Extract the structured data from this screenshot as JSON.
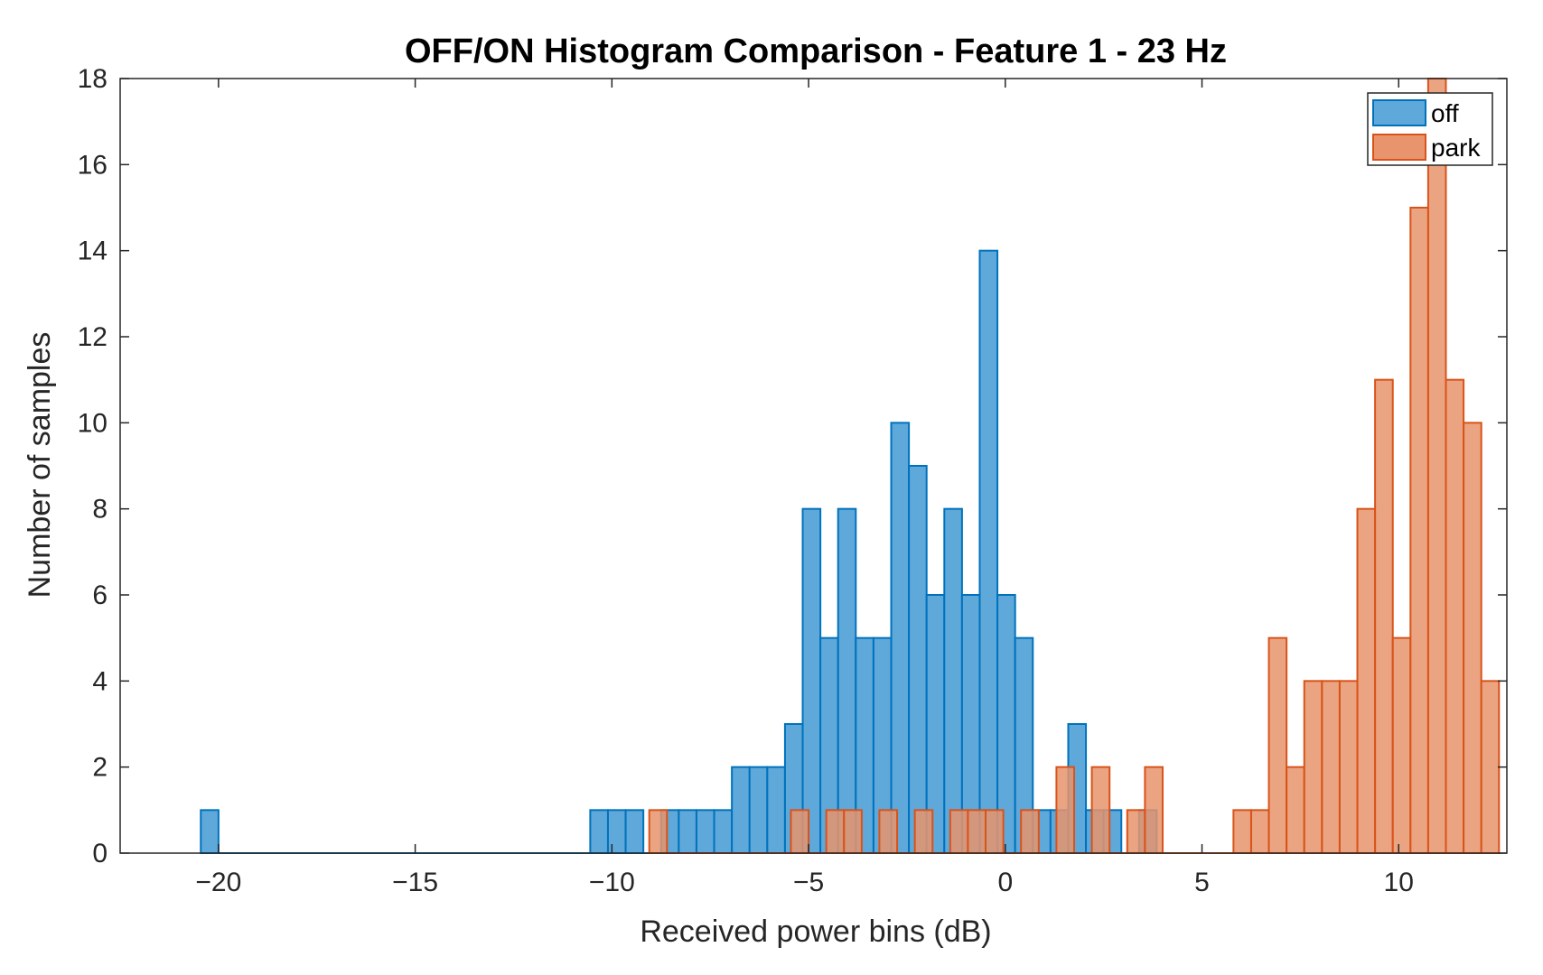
{
  "chart_data": {
    "type": "bar",
    "title": "OFF/ON Histogram Comparison - Feature 1 - 23 Hz",
    "xlabel": "Received power bins (dB)",
    "ylabel": "Number of samples",
    "xlim": [
      -22.5,
      12.75
    ],
    "ylim": [
      0,
      18
    ],
    "x_ticks": [
      -20,
      -15,
      -10,
      -5,
      0,
      5,
      10
    ],
    "x_tick_labels": [
      "−20",
      "−15",
      "−10",
      "−5",
      "0",
      "5",
      "10"
    ],
    "y_ticks": [
      0,
      2,
      4,
      6,
      8,
      10,
      12,
      14,
      16,
      18
    ],
    "y_tick_labels": [
      "0",
      "2",
      "4",
      "6",
      "8",
      "10",
      "12",
      "14",
      "16",
      "18"
    ],
    "grid": false,
    "legend_position": "top-right",
    "bin_width": 0.45,
    "series": [
      {
        "name": "off",
        "color": "#0072BD",
        "fill": "#5FA8DA",
        "bin_start": -20.45,
        "counts": [
          1,
          0,
          0,
          0,
          0,
          0,
          0,
          0,
          0,
          0,
          0,
          0,
          0,
          0,
          0,
          0,
          0,
          0,
          0,
          0,
          0,
          0,
          1,
          1,
          1,
          0,
          1,
          1,
          1,
          1,
          2,
          2,
          2,
          3,
          8,
          5,
          8,
          5,
          5,
          10,
          9,
          6,
          8,
          6,
          14,
          6,
          5,
          1,
          1,
          3,
          1,
          1,
          0,
          1
        ]
      },
      {
        "name": "park",
        "color": "#D95319",
        "fill": "#E8946C",
        "bin_start": -9.05,
        "counts": [
          1,
          0,
          0,
          0,
          0,
          0,
          0,
          0,
          1,
          0,
          1,
          1,
          0,
          1,
          0,
          1,
          0,
          1,
          1,
          1,
          0,
          1,
          0,
          2,
          0,
          2,
          0,
          1,
          2,
          0,
          0,
          0,
          0,
          1,
          1,
          5,
          2,
          4,
          4,
          4,
          8,
          11,
          5,
          15,
          18,
          11,
          10,
          4
        ]
      }
    ]
  }
}
